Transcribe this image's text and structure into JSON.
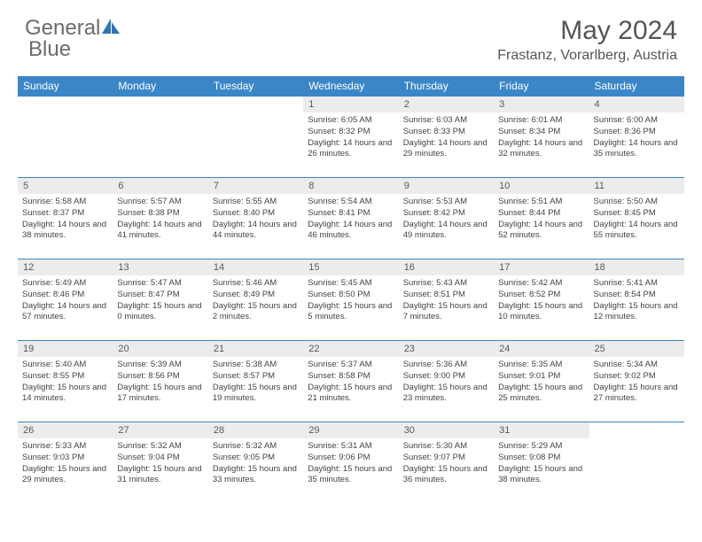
{
  "brand": {
    "part1": "General",
    "part2": "Blue"
  },
  "header": {
    "title": "May 2024",
    "location": "Frastanz, Vorarlberg, Austria"
  },
  "colors": {
    "header_bg": "#3b86c7",
    "header_text": "#ffffff",
    "daynum_bg": "#ececec",
    "daynum_text": "#595959",
    "info_text": "#444444",
    "border": "#3b86c7",
    "title_text": "#555555",
    "logo_text": "#6b6b6b",
    "logo_icon": "#2f74b5"
  },
  "typography": {
    "title_fontsize": 30,
    "location_fontsize": 16,
    "dayhead_fontsize": 12,
    "daynum_fontsize": 11,
    "info_fontsize": 9.5
  },
  "day_names": [
    "Sunday",
    "Monday",
    "Tuesday",
    "Wednesday",
    "Thursday",
    "Friday",
    "Saturday"
  ],
  "weeks": [
    [
      {
        "n": "",
        "sr": "",
        "ss": "",
        "dl": ""
      },
      {
        "n": "",
        "sr": "",
        "ss": "",
        "dl": ""
      },
      {
        "n": "",
        "sr": "",
        "ss": "",
        "dl": ""
      },
      {
        "n": "1",
        "sr": "Sunrise: 6:05 AM",
        "ss": "Sunset: 8:32 PM",
        "dl": "Daylight: 14 hours and 26 minutes."
      },
      {
        "n": "2",
        "sr": "Sunrise: 6:03 AM",
        "ss": "Sunset: 8:33 PM",
        "dl": "Daylight: 14 hours and 29 minutes."
      },
      {
        "n": "3",
        "sr": "Sunrise: 6:01 AM",
        "ss": "Sunset: 8:34 PM",
        "dl": "Daylight: 14 hours and 32 minutes."
      },
      {
        "n": "4",
        "sr": "Sunrise: 6:00 AM",
        "ss": "Sunset: 8:36 PM",
        "dl": "Daylight: 14 hours and 35 minutes."
      }
    ],
    [
      {
        "n": "5",
        "sr": "Sunrise: 5:58 AM",
        "ss": "Sunset: 8:37 PM",
        "dl": "Daylight: 14 hours and 38 minutes."
      },
      {
        "n": "6",
        "sr": "Sunrise: 5:57 AM",
        "ss": "Sunset: 8:38 PM",
        "dl": "Daylight: 14 hours and 41 minutes."
      },
      {
        "n": "7",
        "sr": "Sunrise: 5:55 AM",
        "ss": "Sunset: 8:40 PM",
        "dl": "Daylight: 14 hours and 44 minutes."
      },
      {
        "n": "8",
        "sr": "Sunrise: 5:54 AM",
        "ss": "Sunset: 8:41 PM",
        "dl": "Daylight: 14 hours and 46 minutes."
      },
      {
        "n": "9",
        "sr": "Sunrise: 5:53 AM",
        "ss": "Sunset: 8:42 PM",
        "dl": "Daylight: 14 hours and 49 minutes."
      },
      {
        "n": "10",
        "sr": "Sunrise: 5:51 AM",
        "ss": "Sunset: 8:44 PM",
        "dl": "Daylight: 14 hours and 52 minutes."
      },
      {
        "n": "11",
        "sr": "Sunrise: 5:50 AM",
        "ss": "Sunset: 8:45 PM",
        "dl": "Daylight: 14 hours and 55 minutes."
      }
    ],
    [
      {
        "n": "12",
        "sr": "Sunrise: 5:49 AM",
        "ss": "Sunset: 8:46 PM",
        "dl": "Daylight: 14 hours and 57 minutes."
      },
      {
        "n": "13",
        "sr": "Sunrise: 5:47 AM",
        "ss": "Sunset: 8:47 PM",
        "dl": "Daylight: 15 hours and 0 minutes."
      },
      {
        "n": "14",
        "sr": "Sunrise: 5:46 AM",
        "ss": "Sunset: 8:49 PM",
        "dl": "Daylight: 15 hours and 2 minutes."
      },
      {
        "n": "15",
        "sr": "Sunrise: 5:45 AM",
        "ss": "Sunset: 8:50 PM",
        "dl": "Daylight: 15 hours and 5 minutes."
      },
      {
        "n": "16",
        "sr": "Sunrise: 5:43 AM",
        "ss": "Sunset: 8:51 PM",
        "dl": "Daylight: 15 hours and 7 minutes."
      },
      {
        "n": "17",
        "sr": "Sunrise: 5:42 AM",
        "ss": "Sunset: 8:52 PM",
        "dl": "Daylight: 15 hours and 10 minutes."
      },
      {
        "n": "18",
        "sr": "Sunrise: 5:41 AM",
        "ss": "Sunset: 8:54 PM",
        "dl": "Daylight: 15 hours and 12 minutes."
      }
    ],
    [
      {
        "n": "19",
        "sr": "Sunrise: 5:40 AM",
        "ss": "Sunset: 8:55 PM",
        "dl": "Daylight: 15 hours and 14 minutes."
      },
      {
        "n": "20",
        "sr": "Sunrise: 5:39 AM",
        "ss": "Sunset: 8:56 PM",
        "dl": "Daylight: 15 hours and 17 minutes."
      },
      {
        "n": "21",
        "sr": "Sunrise: 5:38 AM",
        "ss": "Sunset: 8:57 PM",
        "dl": "Daylight: 15 hours and 19 minutes."
      },
      {
        "n": "22",
        "sr": "Sunrise: 5:37 AM",
        "ss": "Sunset: 8:58 PM",
        "dl": "Daylight: 15 hours and 21 minutes."
      },
      {
        "n": "23",
        "sr": "Sunrise: 5:36 AM",
        "ss": "Sunset: 9:00 PM",
        "dl": "Daylight: 15 hours and 23 minutes."
      },
      {
        "n": "24",
        "sr": "Sunrise: 5:35 AM",
        "ss": "Sunset: 9:01 PM",
        "dl": "Daylight: 15 hours and 25 minutes."
      },
      {
        "n": "25",
        "sr": "Sunrise: 5:34 AM",
        "ss": "Sunset: 9:02 PM",
        "dl": "Daylight: 15 hours and 27 minutes."
      }
    ],
    [
      {
        "n": "26",
        "sr": "Sunrise: 5:33 AM",
        "ss": "Sunset: 9:03 PM",
        "dl": "Daylight: 15 hours and 29 minutes."
      },
      {
        "n": "27",
        "sr": "Sunrise: 5:32 AM",
        "ss": "Sunset: 9:04 PM",
        "dl": "Daylight: 15 hours and 31 minutes."
      },
      {
        "n": "28",
        "sr": "Sunrise: 5:32 AM",
        "ss": "Sunset: 9:05 PM",
        "dl": "Daylight: 15 hours and 33 minutes."
      },
      {
        "n": "29",
        "sr": "Sunrise: 5:31 AM",
        "ss": "Sunset: 9:06 PM",
        "dl": "Daylight: 15 hours and 35 minutes."
      },
      {
        "n": "30",
        "sr": "Sunrise: 5:30 AM",
        "ss": "Sunset: 9:07 PM",
        "dl": "Daylight: 15 hours and 36 minutes."
      },
      {
        "n": "31",
        "sr": "Sunrise: 5:29 AM",
        "ss": "Sunset: 9:08 PM",
        "dl": "Daylight: 15 hours and 38 minutes."
      },
      {
        "n": "",
        "sr": "",
        "ss": "",
        "dl": ""
      }
    ]
  ]
}
